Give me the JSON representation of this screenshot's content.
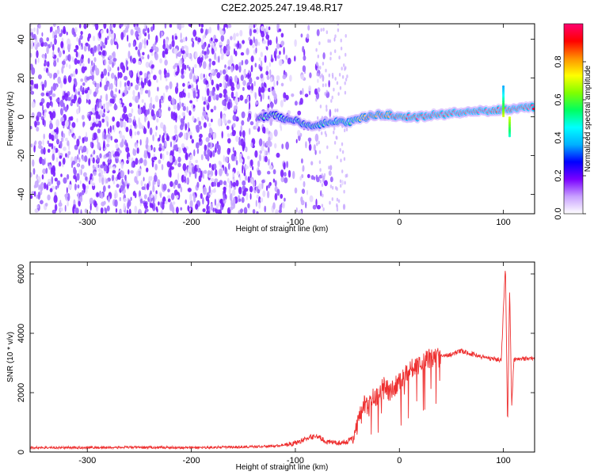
{
  "chart_data": [
    {
      "type": "heatmap",
      "title": "C2E2.2025.247.19.48.R17",
      "xlabel": "Height of straight line (km)",
      "ylabel": "Frequency (Hz)",
      "xlim": [
        -355,
        130
      ],
      "ylim": [
        -50,
        48
      ],
      "xticks": [
        -300,
        -200,
        -100,
        0,
        100
      ],
      "yticks": [
        -40,
        -20,
        0,
        20,
        40
      ],
      "ridge": {
        "description": "high-amplitude signal track",
        "x": [
          -130,
          -120,
          -110,
          -100,
          -90,
          -80,
          -70,
          -60,
          -50,
          -40,
          -30,
          -20,
          -10,
          0,
          10,
          20,
          30,
          40,
          50,
          60,
          70,
          80,
          90,
          100,
          110,
          120,
          130
        ],
        "y": [
          0,
          1,
          -1,
          -2,
          -4,
          -5,
          -3,
          -2,
          -3,
          -1,
          0,
          1,
          1,
          0,
          0,
          0,
          1,
          1,
          2,
          2,
          3,
          3,
          3,
          4,
          4,
          5,
          5
        ]
      },
      "noise_region_x": [
        -355,
        -60
      ],
      "spike_x": 100,
      "colorbar": {
        "label": "Normalized spectral amplitude",
        "range": [
          0,
          1
        ],
        "ticks": [
          "0.0",
          "0.2",
          "0.4",
          "0.6",
          "0.8"
        ],
        "tick_values": [
          0,
          0.2,
          0.4,
          0.6,
          0.8
        ],
        "colors": [
          "#ffffff",
          "#c8a0ff",
          "#7a00ff",
          "#0000ff",
          "#00b0ff",
          "#00ffff",
          "#00ff60",
          "#80ff00",
          "#ffff00",
          "#ff9000",
          "#ff0000",
          "#ff0070"
        ]
      }
    },
    {
      "type": "line",
      "xlabel": "Height of straight line (km)",
      "ylabel": "SNR (10 * v/v)",
      "xlim": [
        -355,
        130
      ],
      "ylim": [
        0,
        6400
      ],
      "xticks": [
        -300,
        -200,
        -100,
        0,
        100
      ],
      "yticks": [
        0,
        2000,
        4000,
        6000
      ],
      "series": [
        {
          "name": "SNR",
          "color": "#ee3030",
          "x": [
            -355,
            -300,
            -250,
            -200,
            -150,
            -120,
            -100,
            -90,
            -80,
            -70,
            -60,
            -50,
            -45,
            -40,
            -35,
            -30,
            -25,
            -20,
            -15,
            -10,
            -5,
            0,
            10,
            20,
            30,
            40,
            50,
            60,
            70,
            80,
            90,
            98,
            100,
            102,
            104,
            106,
            108,
            110,
            120,
            130
          ],
          "y": [
            150,
            150,
            160,
            150,
            170,
            200,
            300,
            450,
            550,
            350,
            300,
            350,
            500,
            1000,
            1700,
            1400,
            2000,
            1800,
            2300,
            2000,
            2200,
            2400,
            2800,
            3000,
            3150,
            3200,
            3300,
            3400,
            3300,
            3200,
            3150,
            3100,
            4800,
            6300,
            800,
            5500,
            1500,
            3100,
            3150,
            3150
          ]
        }
      ]
    }
  ]
}
